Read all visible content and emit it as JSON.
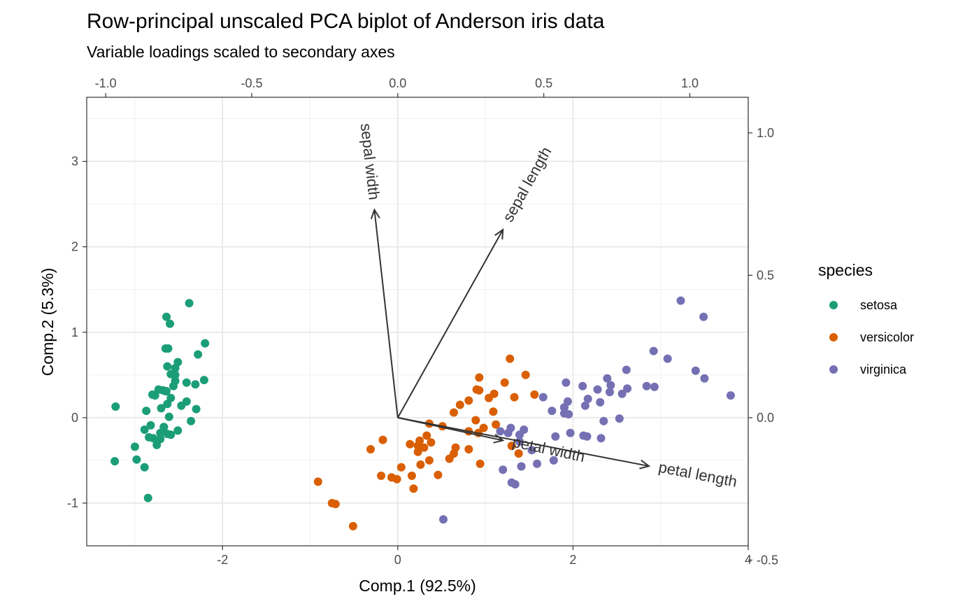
{
  "chart_data": {
    "type": "scatter",
    "title": "Row-principal unscaled PCA biplot of Anderson iris data",
    "subtitle": "Variable loadings scaled to secondary axes",
    "xlabel": "Comp.1 (92.5%)",
    "ylabel": "Comp.2 (5.3%)",
    "xlim": [
      -3.55,
      4.0
    ],
    "ylim": [
      -1.5,
      3.75
    ],
    "x_ticks": [
      -2,
      0,
      2,
      4
    ],
    "y_ticks": [
      -1,
      0,
      1,
      2,
      3
    ],
    "secondary_x_lim": [
      -1.0,
      1.0
    ],
    "secondary_x_ticks": [
      -1.0,
      -0.5,
      0.0,
      0.5,
      1.0
    ],
    "secondary_y_ticks": [
      -0.5,
      0.0,
      0.5,
      1.0
    ],
    "secondary_scale": 0.3,
    "grid": true,
    "legend": {
      "title": "species",
      "position": "right",
      "entries": [
        {
          "name": "setosa",
          "color": "#1b9e77"
        },
        {
          "name": "versicolor",
          "color": "#d95f02"
        },
        {
          "name": "virginica",
          "color": "#7570b3"
        }
      ]
    },
    "series": [
      {
        "name": "setosa",
        "color": "#1b9e77",
        "points": [
          [
            -2.68,
            0.32
          ],
          [
            -2.71,
            -0.18
          ],
          [
            -2.89,
            -0.14
          ],
          [
            -2.75,
            -0.32
          ],
          [
            -2.73,
            0.33
          ],
          [
            -2.28,
            0.74
          ],
          [
            -2.82,
            -0.09
          ],
          [
            -2.63,
            0.16
          ],
          [
            -2.89,
            -0.58
          ],
          [
            -2.67,
            -0.11
          ],
          [
            -2.51,
            0.65
          ],
          [
            -2.61,
            0.01
          ],
          [
            -2.79,
            -0.24
          ],
          [
            -3.23,
            -0.51
          ],
          [
            -2.64,
            1.18
          ],
          [
            -2.38,
            1.34
          ],
          [
            -2.62,
            0.81
          ],
          [
            -2.65,
            0.31
          ],
          [
            -2.2,
            0.87
          ],
          [
            -2.59,
            0.51
          ],
          [
            -2.31,
            0.39
          ],
          [
            -2.54,
            0.43
          ],
          [
            -3.22,
            0.13
          ],
          [
            -2.3,
            0.1
          ],
          [
            -2.36,
            -0.04
          ],
          [
            -2.51,
            -0.15
          ],
          [
            -2.47,
            0.14
          ],
          [
            -2.56,
            0.37
          ],
          [
            -2.64,
            0.31
          ],
          [
            -2.63,
            -0.19
          ],
          [
            -2.59,
            -0.2
          ],
          [
            -2.41,
            0.41
          ],
          [
            -2.65,
            0.81
          ],
          [
            -2.6,
            1.1
          ],
          [
            -2.67,
            -0.11
          ],
          [
            -2.87,
            0.08
          ],
          [
            -2.63,
            0.6
          ],
          [
            -2.8,
            0.27
          ],
          [
            -2.98,
            -0.49
          ],
          [
            -2.59,
            0.23
          ],
          [
            -2.77,
            0.26
          ],
          [
            -2.85,
            -0.94
          ],
          [
            -3.0,
            -0.34
          ],
          [
            -2.41,
            0.19
          ],
          [
            -2.21,
            0.44
          ],
          [
            -2.71,
            -0.25
          ],
          [
            -2.54,
            0.5
          ],
          [
            -2.84,
            -0.23
          ],
          [
            -2.54,
            0.58
          ],
          [
            -2.7,
            0.11
          ]
        ]
      },
      {
        "name": "versicolor",
        "color": "#d95f02",
        "points": [
          [
            1.28,
            0.69
          ],
          [
            0.93,
            0.32
          ],
          [
            1.46,
            0.5
          ],
          [
            0.18,
            -0.83
          ],
          [
            1.09,
            0.07
          ],
          [
            0.64,
            -0.42
          ],
          [
            1.1,
            0.28
          ],
          [
            -0.75,
            -1.0
          ],
          [
            1.04,
            0.23
          ],
          [
            -0.01,
            -0.72
          ],
          [
            -0.51,
            -1.27
          ],
          [
            0.51,
            -0.1
          ],
          [
            0.26,
            -0.55
          ],
          [
            0.98,
            -0.12
          ],
          [
            -0.17,
            -0.26
          ],
          [
            0.93,
            0.47
          ],
          [
            0.66,
            -0.35
          ],
          [
            0.23,
            -0.33
          ],
          [
            0.94,
            -0.54
          ],
          [
            0.04,
            -0.58
          ],
          [
            1.12,
            -0.08
          ],
          [
            0.36,
            -0.07
          ],
          [
            1.3,
            -0.33
          ],
          [
            0.92,
            -0.18
          ],
          [
            0.71,
            0.15
          ],
          [
            0.9,
            0.33
          ],
          [
            1.33,
            0.24
          ],
          [
            1.56,
            0.27
          ],
          [
            0.81,
            -0.16
          ],
          [
            -0.31,
            -0.37
          ],
          [
            -0.07,
            -0.7
          ],
          [
            -0.19,
            -0.68
          ],
          [
            0.14,
            -0.31
          ],
          [
            1.38,
            -0.42
          ],
          [
            0.59,
            -0.48
          ],
          [
            0.81,
            0.2
          ],
          [
            1.22,
            0.41
          ],
          [
            0.81,
            -0.37
          ],
          [
            0.25,
            -0.27
          ],
          [
            0.16,
            -0.68
          ],
          [
            0.46,
            -0.67
          ],
          [
            0.89,
            -0.03
          ],
          [
            0.23,
            -0.4
          ],
          [
            -0.71,
            -1.01
          ],
          [
            0.36,
            -0.5
          ],
          [
            0.33,
            -0.21
          ],
          [
            0.38,
            -0.29
          ],
          [
            0.64,
            0.06
          ],
          [
            -0.91,
            -0.75
          ],
          [
            0.3,
            -0.35
          ]
        ]
      },
      {
        "name": "virginica",
        "color": "#7570b3",
        "points": [
          [
            2.53,
            -0.01
          ],
          [
            1.41,
            -0.57
          ],
          [
            2.62,
            0.34
          ],
          [
            1.97,
            -0.18
          ],
          [
            2.35,
            -0.04
          ],
          [
            3.4,
            0.55
          ],
          [
            0.52,
            -1.19
          ],
          [
            2.93,
            0.36
          ],
          [
            2.32,
            -0.24
          ],
          [
            2.92,
            0.78
          ],
          [
            1.66,
            0.24
          ],
          [
            1.8,
            -0.22
          ],
          [
            2.17,
            0.22
          ],
          [
            1.34,
            -0.78
          ],
          [
            1.59,
            -0.54
          ],
          [
            1.9,
            0.12
          ],
          [
            1.95,
            0.04
          ],
          [
            3.49,
            1.18
          ],
          [
            3.8,
            0.26
          ],
          [
            1.3,
            -0.76
          ],
          [
            2.43,
            0.38
          ],
          [
            1.2,
            -0.61
          ],
          [
            3.5,
            0.46
          ],
          [
            1.39,
            -0.2
          ],
          [
            2.28,
            0.33
          ],
          [
            2.61,
            0.56
          ],
          [
            1.26,
            -0.18
          ],
          [
            1.29,
            -0.12
          ],
          [
            2.12,
            -0.21
          ],
          [
            2.39,
            0.46
          ],
          [
            2.84,
            0.37
          ],
          [
            3.23,
            1.37
          ],
          [
            2.16,
            -0.22
          ],
          [
            1.44,
            -0.14
          ],
          [
            1.78,
            -0.5
          ],
          [
            3.08,
            0.69
          ],
          [
            2.14,
            0.14
          ],
          [
            1.9,
            0.05
          ],
          [
            1.17,
            -0.16
          ],
          [
            2.11,
            0.37
          ],
          [
            2.31,
            0.18
          ],
          [
            1.92,
            0.41
          ],
          [
            1.41,
            -0.57
          ],
          [
            2.56,
            0.28
          ],
          [
            2.42,
            0.3
          ],
          [
            1.94,
            0.19
          ],
          [
            1.53,
            -0.38
          ],
          [
            1.76,
            0.08
          ],
          [
            1.9,
            0.12
          ],
          [
            1.39,
            -0.28
          ]
        ]
      }
    ],
    "loadings": [
      {
        "name": "sepal length",
        "x": 0.36,
        "y": 0.66
      },
      {
        "name": "sepal width",
        "x": -0.08,
        "y": 0.73
      },
      {
        "name": "petal length",
        "x": 0.86,
        "y": -0.17
      },
      {
        "name": "petal width",
        "x": 0.36,
        "y": -0.08
      }
    ]
  }
}
